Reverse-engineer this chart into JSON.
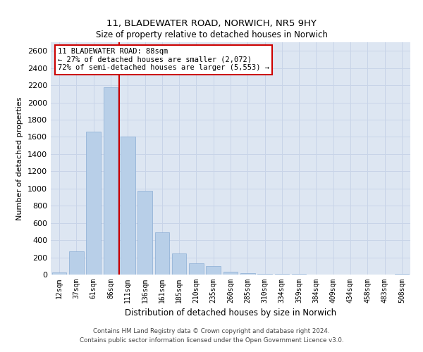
{
  "title1": "11, BLADEWATER ROAD, NORWICH, NR5 9HY",
  "title2": "Size of property relative to detached houses in Norwich",
  "xlabel": "Distribution of detached houses by size in Norwich",
  "ylabel": "Number of detached properties",
  "categories": [
    "12sqm",
    "37sqm",
    "61sqm",
    "86sqm",
    "111sqm",
    "136sqm",
    "161sqm",
    "185sqm",
    "210sqm",
    "235sqm",
    "260sqm",
    "285sqm",
    "310sqm",
    "334sqm",
    "359sqm",
    "384sqm",
    "409sqm",
    "434sqm",
    "458sqm",
    "483sqm",
    "508sqm"
  ],
  "values": [
    25,
    270,
    1660,
    2180,
    1600,
    970,
    490,
    245,
    130,
    100,
    35,
    20,
    10,
    5,
    5,
    2,
    1,
    1,
    0,
    0,
    5
  ],
  "bar_color": "#b8cfe8",
  "bar_edge_color": "#8aadd4",
  "vline_color": "#cc0000",
  "annotation_text": "11 BLADEWATER ROAD: 88sqm\n← 27% of detached houses are smaller (2,072)\n72% of semi-detached houses are larger (5,553) →",
  "annotation_box_color": "#ffffff",
  "annotation_box_edge": "#cc0000",
  "ylim": [
    0,
    2700
  ],
  "yticks": [
    0,
    200,
    400,
    600,
    800,
    1000,
    1200,
    1400,
    1600,
    1800,
    2000,
    2200,
    2400,
    2600
  ],
  "grid_color": "#c8d4e8",
  "bg_color": "#dde6f2",
  "footer1": "Contains HM Land Registry data © Crown copyright and database right 2024.",
  "footer2": "Contains public sector information licensed under the Open Government Licence v3.0."
}
